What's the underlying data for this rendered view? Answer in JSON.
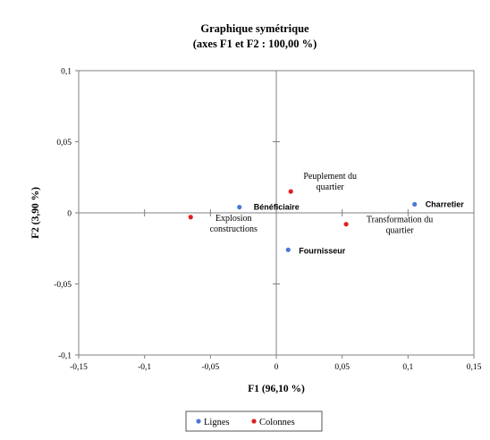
{
  "chart_data": {
    "type": "scatter",
    "title": "Graphique symétrique",
    "subtitle": "(axes F1 et F2 : 100,00 %)",
    "xlabel": "F1 (96,10 %)",
    "ylabel": "F2 (3,90 %)",
    "xlim": [
      -0.15,
      0.15
    ],
    "ylim": [
      -0.1,
      0.1
    ],
    "x_ticks": [
      -0.15,
      -0.1,
      -0.05,
      0,
      0.05,
      0.1,
      0.15
    ],
    "y_ticks": [
      -0.1,
      -0.05,
      0,
      0.05,
      0.1
    ],
    "x_tick_labels": [
      "-0,15",
      "-0,1",
      "-0,05",
      "0",
      "0,05",
      "0,1",
      "0,15"
    ],
    "y_tick_labels": [
      "-0,1",
      "-0,05",
      "0",
      "0,05",
      "0,1"
    ],
    "grid": false,
    "legend_position": "bottom",
    "series": [
      {
        "name": "Lignes",
        "color": "#4a78d8",
        "points": [
          {
            "label": "Bénéficiaire",
            "x": -0.028,
            "y": 0.004
          },
          {
            "label": "Charretier",
            "x": 0.105,
            "y": 0.006
          },
          {
            "label": "Fournisseur",
            "x": 0.009,
            "y": -0.026
          }
        ]
      },
      {
        "name": "Colonnes",
        "color": "#e02020",
        "points": [
          {
            "label": "Peuplement du quartier",
            "x": 0.011,
            "y": 0.015
          },
          {
            "label": "Explosion constructions",
            "x": -0.065,
            "y": -0.003
          },
          {
            "label": "Transformation du quartier",
            "x": 0.053,
            "y": -0.008
          }
        ]
      }
    ]
  }
}
